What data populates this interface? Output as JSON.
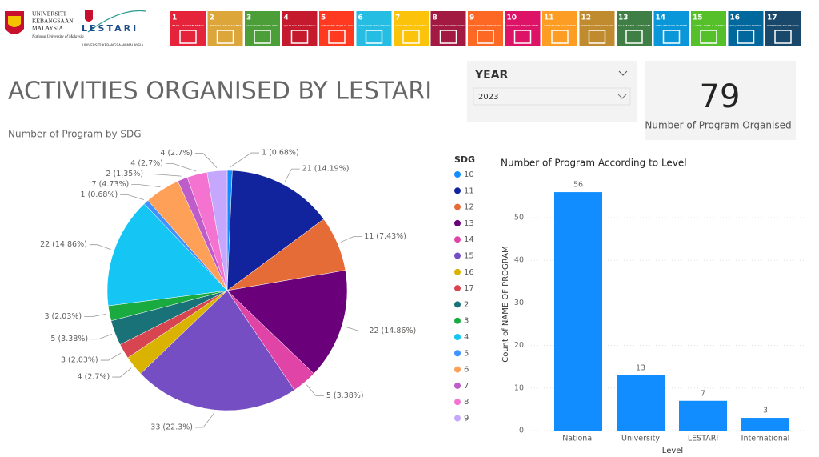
{
  "header": {
    "title": "ACTIVITIES ORGANISED BY LESTARI",
    "logos": {
      "university_name": [
        "UNIVERSITI",
        "KEBANGSAAN",
        "MALAYSIA"
      ],
      "university_subtitle": "National University of Malaysia",
      "lestari": "LESTARI",
      "lestari_subtitle": "UNIVERSITI KEBANGSAAN MALAYSIA"
    },
    "sdg_banner": [
      {
        "number": "1",
        "label": "NO POVERTY",
        "color": "#e5243b"
      },
      {
        "number": "2",
        "label": "ZERO HUNGER",
        "color": "#dda63a"
      },
      {
        "number": "3",
        "label": "GOOD HEALTH AND WELL-BEING",
        "color": "#4c9f38"
      },
      {
        "number": "4",
        "label": "QUALITY EDUCATION",
        "color": "#c5192d"
      },
      {
        "number": "5",
        "label": "GENDER EQUALITY",
        "color": "#ff3a21"
      },
      {
        "number": "6",
        "label": "CLEAN WATER AND SANITATION",
        "color": "#26bde2"
      },
      {
        "number": "7",
        "label": "AFFORDABLE AND CLEAN ENERGY",
        "color": "#fcc30b"
      },
      {
        "number": "8",
        "label": "DECENT WORK AND ECONOMIC GROWTH",
        "color": "#a21942"
      },
      {
        "number": "9",
        "label": "INDUSTRY, INNOVATION AND INFRASTRUCTURE",
        "color": "#fd6925"
      },
      {
        "number": "10",
        "label": "REDUCED INEQUALITIES",
        "color": "#dd1367"
      },
      {
        "number": "11",
        "label": "SUSTAINABLE CITIES AND COMMUNITIES",
        "color": "#fd9d24"
      },
      {
        "number": "12",
        "label": "RESPONSIBLE CONSUMPTION AND PRODUCTION",
        "color": "#bf8b2e"
      },
      {
        "number": "13",
        "label": "CLIMATE ACTION",
        "color": "#3f7e44"
      },
      {
        "number": "14",
        "label": "LIFE BELOW WATER",
        "color": "#0a97d9"
      },
      {
        "number": "15",
        "label": "LIFE ON LAND",
        "color": "#56c02b"
      },
      {
        "number": "16",
        "label": "PEACE, JUSTICE AND STRONG INSTITUTIONS",
        "color": "#00689d"
      },
      {
        "number": "17",
        "label": "PARTNERSHIPS FOR THE GOALS",
        "color": "#19486a"
      }
    ]
  },
  "slicer": {
    "label": "YEAR",
    "selected": "2023"
  },
  "card": {
    "value": "79",
    "label": "Number of Program Organised"
  },
  "chart_data": [
    {
      "type": "pie",
      "title": "Number of Program by SDG",
      "legend_title": "SDG",
      "categories": [
        "10",
        "11",
        "12",
        "13",
        "14",
        "15",
        "16",
        "17",
        "2",
        "3",
        "4",
        "5",
        "6",
        "7",
        "8",
        "9"
      ],
      "values": [
        1,
        21,
        11,
        22,
        5,
        33,
        4,
        3,
        5,
        3,
        22,
        1,
        7,
        2,
        4,
        4
      ],
      "value_labels": [
        "1 (0.68%)",
        "21 (14.19%)",
        "11 (7.43%)",
        "22 (14.86%)",
        "5 (3.38%)",
        "33 (22.3%)",
        "4 (2.7%)",
        "3 (2.03%)",
        "5 (3.38%)",
        "3 (2.03%)",
        "22 (14.86%)",
        "1 (0.68%)",
        "7 (4.73%)",
        "2 (1.35%)",
        "4 (2.7%)",
        "4 (2.7%)"
      ],
      "colors": [
        "#118dff",
        "#12239e",
        "#e66c37",
        "#6b007b",
        "#e044a7",
        "#744ec2",
        "#d9b300",
        "#d64550",
        "#197278",
        "#1aab40",
        "#15c6f4",
        "#4092ff",
        "#ffa058",
        "#be5dc9",
        "#f472d0",
        "#c5a8fd"
      ]
    },
    {
      "type": "bar",
      "title": "Number of Program According to Level",
      "xlabel": "Level",
      "ylabel": "Count of NAME OF PROGRAM",
      "categories": [
        "National",
        "University",
        "LESTARI",
        "International"
      ],
      "values": [
        56,
        13,
        7,
        3
      ],
      "color": "#118dff",
      "ylim": [
        0,
        60
      ],
      "yticks": [
        0,
        10,
        20,
        30,
        40,
        50
      ],
      "grid": true,
      "data_labels": true
    }
  ]
}
